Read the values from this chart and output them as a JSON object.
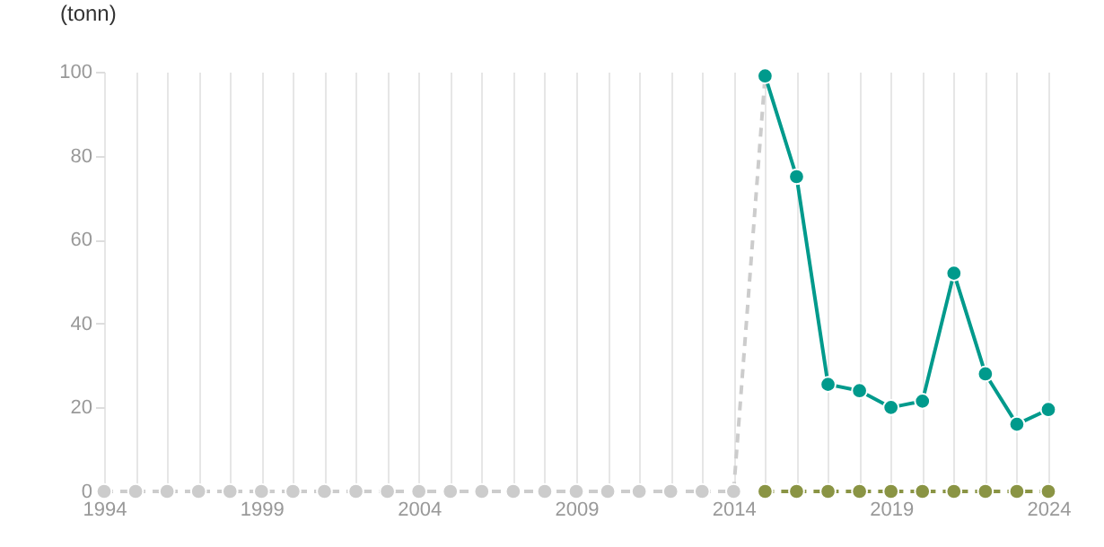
{
  "chart_data": {
    "type": "line",
    "ylabel": "(tonn)",
    "series": [
      {
        "color": "#cccccc",
        "line_style": "dashed",
        "x": [
          1994,
          1995,
          1996,
          1997,
          1998,
          1999,
          2000,
          2001,
          2002,
          2003,
          2004,
          2005,
          2006,
          2007,
          2008,
          2009,
          2010,
          2011,
          2012,
          2013,
          2014,
          2015
        ],
        "values": [
          0,
          0,
          0,
          0,
          0,
          0,
          0,
          0,
          0,
          0,
          0,
          0,
          0,
          0,
          0,
          0,
          0,
          0,
          0,
          0,
          0,
          99
        ]
      },
      {
        "color": "#8a9444",
        "line_style": "dashed",
        "x": [
          2015,
          2016,
          2017,
          2018,
          2019,
          2020,
          2021,
          2022,
          2023,
          2024
        ],
        "values": [
          0,
          0,
          0,
          0,
          0,
          0,
          0,
          0,
          0,
          0
        ]
      },
      {
        "color": "#009a8c",
        "line_style": "solid",
        "x": [
          2015,
          2016,
          2017,
          2018,
          2019,
          2020,
          2021,
          2022,
          2023,
          2024
        ],
        "values": [
          99,
          75,
          25.5,
          24,
          20,
          21.5,
          52,
          28,
          16,
          19.5
        ]
      }
    ],
    "xlim": [
      1994,
      2024
    ],
    "xticks": [
      1994,
      {
        "value": 1995,
        "label": null
      },
      {
        "value": 1996,
        "label": null
      },
      {
        "value": 1997,
        "label": null
      },
      {
        "value": 1998,
        "label": null
      },
      1999,
      {
        "value": 2000,
        "label": null
      },
      {
        "value": 2001,
        "label": null
      },
      {
        "value": 2002,
        "label": null
      },
      {
        "value": 2003,
        "label": null
      },
      2004,
      {
        "value": 2005,
        "label": null
      },
      {
        "value": 2006,
        "label": null
      },
      {
        "value": 2007,
        "label": null
      },
      {
        "value": 2008,
        "label": null
      },
      2009,
      {
        "value": 2010,
        "label": null
      },
      {
        "value": 2011,
        "label": null
      },
      {
        "value": 2012,
        "label": null
      },
      {
        "value": 2013,
        "label": null
      },
      2014,
      {
        "value": 2015,
        "label": null
      },
      {
        "value": 2016,
        "label": null
      },
      {
        "value": 2017,
        "label": null
      },
      {
        "value": 2018,
        "label": null
      },
      2019,
      {
        "value": 2020,
        "label": null
      },
      {
        "value": 2021,
        "label": null
      },
      {
        "value": 2022,
        "label": null
      },
      {
        "value": 2023,
        "label": null
      },
      2024
    ],
    "ylim": [
      0,
      100
    ],
    "yticks": [
      0,
      20,
      40,
      60,
      80,
      100
    ],
    "grid": "x",
    "marker": "circle"
  }
}
